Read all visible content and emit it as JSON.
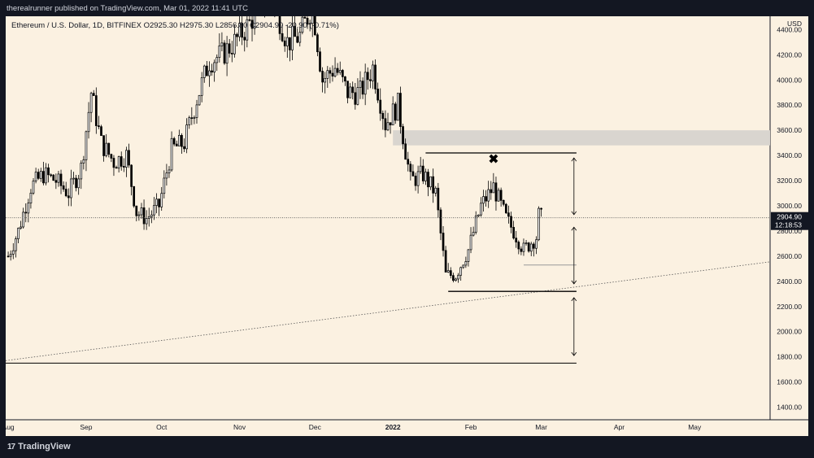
{
  "header": {
    "publisher_line": "therealrunner published on TradingView.com, Mar 01, 2022 11:41 UTC",
    "symbol_line": "Ethereum / U.S. Dollar, 1D, BITFINEX O2925.30 H2975.30 L2856.80 C2904.90 -20.90 (-0.71%)"
  },
  "footer": {
    "logo_text": "TradingView",
    "logo_mark": "17"
  },
  "colors": {
    "background": "#fbf1e1",
    "candle": "#000000",
    "frame": "#131722",
    "zone": "#d9d5cf"
  },
  "chart_data": {
    "type": "candlestick",
    "symbol": "ETHUSD",
    "timeframe": "1D",
    "exchange": "BITFINEX",
    "ohlc_last": {
      "open": 2925.3,
      "high": 2975.3,
      "low": 2856.8,
      "close": 2904.9,
      "change": -20.9,
      "change_pct": "-0.71%"
    },
    "currency_label": "USD",
    "price_ticks": [
      "4400.00",
      "4200.00",
      "4000.00",
      "3800.00",
      "3600.00",
      "3400.00",
      "3200.00",
      "3000.00",
      "2800.00",
      "2600.00",
      "2400.00",
      "2200.00",
      "2000.00",
      "1800.00",
      "1600.00",
      "1400.00"
    ],
    "price_tick_values": [
      4400,
      4200,
      4000,
      3800,
      3600,
      3400,
      3200,
      3000,
      2800,
      2600,
      2400,
      2200,
      2000,
      1800,
      1600,
      1400
    ],
    "time_ticks": [
      {
        "label": "Aug",
        "date": "2021-08-01"
      },
      {
        "label": "Sep",
        "date": "2021-09-01"
      },
      {
        "label": "Oct",
        "date": "2021-10-01"
      },
      {
        "label": "Nov",
        "date": "2021-11-01"
      },
      {
        "label": "Dec",
        "date": "2021-12-01"
      },
      {
        "label": "2022",
        "date": "2022-01-01"
      },
      {
        "label": "Feb",
        "date": "2022-02-01"
      },
      {
        "label": "Mar",
        "date": "2022-03-01"
      },
      {
        "label": "Apr",
        "date": "2022-04-01"
      },
      {
        "label": "May",
        "date": "2022-05-01"
      }
    ],
    "last_price_label": "2904.90",
    "countdown_label": "12:18:53",
    "price_range": [
      1300,
      4480
    ],
    "date_range": [
      "2021-07-31",
      "2022-05-31"
    ],
    "series_close": [
      {
        "d": "2021-08-01",
        "c": 2600
      },
      {
        "d": "2021-08-05",
        "c": 2800
      },
      {
        "d": "2021-08-10",
        "c": 3150
      },
      {
        "d": "2021-08-15",
        "c": 3250
      },
      {
        "d": "2021-08-20",
        "c": 3200
      },
      {
        "d": "2021-08-25",
        "c": 3100
      },
      {
        "d": "2021-08-30",
        "c": 3300
      },
      {
        "d": "2021-09-03",
        "c": 3900
      },
      {
        "d": "2021-09-07",
        "c": 3500
      },
      {
        "d": "2021-09-12",
        "c": 3350
      },
      {
        "d": "2021-09-17",
        "c": 3400
      },
      {
        "d": "2021-09-21",
        "c": 2950
      },
      {
        "d": "2021-09-25",
        "c": 2900
      },
      {
        "d": "2021-09-30",
        "c": 3000
      },
      {
        "d": "2021-10-05",
        "c": 3450
      },
      {
        "d": "2021-10-10",
        "c": 3500
      },
      {
        "d": "2021-10-15",
        "c": 3850
      },
      {
        "d": "2021-10-20",
        "c": 4150
      },
      {
        "d": "2021-10-25",
        "c": 4200
      },
      {
        "d": "2021-10-30",
        "c": 4300
      },
      {
        "d": "2021-11-05",
        "c": 4450
      },
      {
        "d": "2021-11-10",
        "c": 4650
      },
      {
        "d": "2021-11-15",
        "c": 4600
      },
      {
        "d": "2021-11-20",
        "c": 4300
      },
      {
        "d": "2021-11-25",
        "c": 4350
      },
      {
        "d": "2021-11-30",
        "c": 4600
      },
      {
        "d": "2021-12-04",
        "c": 4000
      },
      {
        "d": "2021-12-09",
        "c": 4100
      },
      {
        "d": "2021-12-14",
        "c": 3900
      },
      {
        "d": "2021-12-19",
        "c": 3900
      },
      {
        "d": "2021-12-24",
        "c": 4100
      },
      {
        "d": "2021-12-29",
        "c": 3650
      },
      {
        "d": "2022-01-03",
        "c": 3800
      },
      {
        "d": "2022-01-08",
        "c": 3200
      },
      {
        "d": "2022-01-13",
        "c": 3250
      },
      {
        "d": "2022-01-18",
        "c": 3100
      },
      {
        "d": "2022-01-22",
        "c": 2450
      },
      {
        "d": "2022-01-26",
        "c": 2450
      },
      {
        "d": "2022-01-31",
        "c": 2650
      },
      {
        "d": "2022-02-05",
        "c": 3000
      },
      {
        "d": "2022-02-10",
        "c": 3150
      },
      {
        "d": "2022-02-15",
        "c": 2900
      },
      {
        "d": "2022-02-18",
        "c": 2800
      },
      {
        "d": "2022-02-22",
        "c": 2650
      },
      {
        "d": "2022-02-27",
        "c": 2750
      },
      {
        "d": "2022-02-28",
        "c": 2925
      },
      {
        "d": "2022-03-01",
        "c": 2905
      }
    ],
    "annotations": {
      "resistance_zone": [
        3480,
        3600
      ],
      "range_top": 3420,
      "range_bottom": 2320,
      "lower_target": 1750,
      "small_level": 2530,
      "marker": {
        "label": "✖",
        "date": "2022-02-10",
        "price": 3370
      }
    }
  }
}
